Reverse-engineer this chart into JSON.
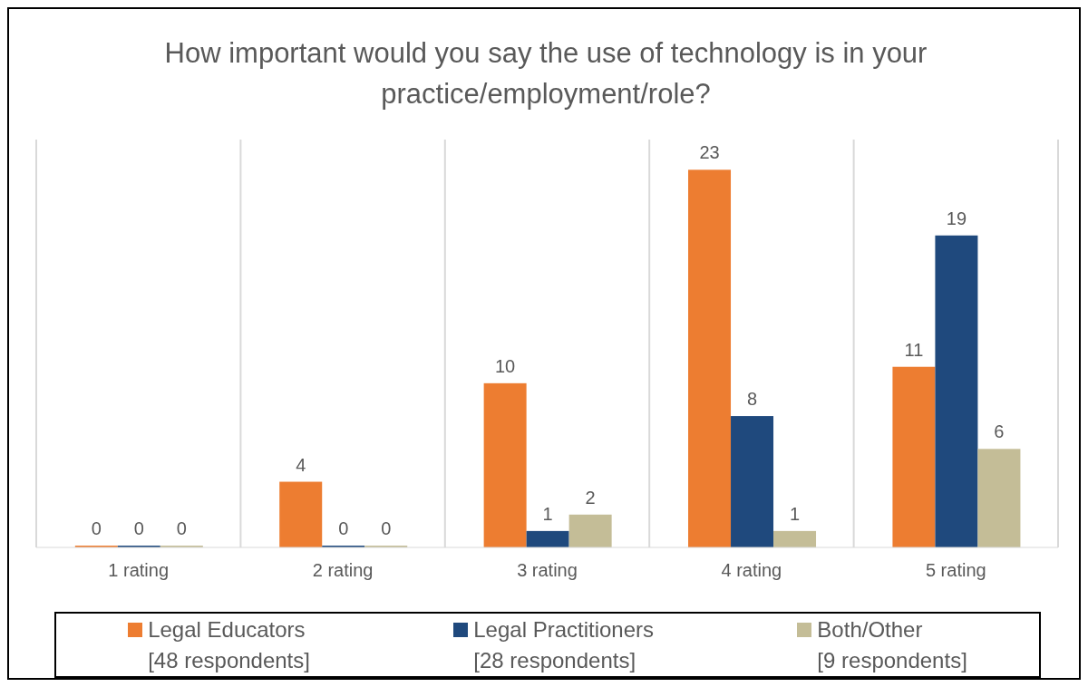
{
  "chart_data": {
    "type": "bar",
    "title": "How important would you say the use of technology is in your practice/employment/role?",
    "categories": [
      "1 rating",
      "2 rating",
      "3 rating",
      "4 rating",
      "5 rating"
    ],
    "series": [
      {
        "name": "Legal Educators\n[48 respondents]",
        "color": "#ed7d31",
        "values": [
          0,
          4,
          10,
          23,
          11
        ]
      },
      {
        "name": "Legal Practitioners\n[28 respondents]",
        "color": "#1f497d",
        "values": [
          0,
          0,
          1,
          8,
          19
        ]
      },
      {
        "name": "Both/Other\n[9 respondents]",
        "color": "#c4bd97",
        "values": [
          0,
          0,
          2,
          1,
          6
        ]
      }
    ],
    "data_labels": true,
    "grid": "x",
    "legend": "bottom"
  }
}
